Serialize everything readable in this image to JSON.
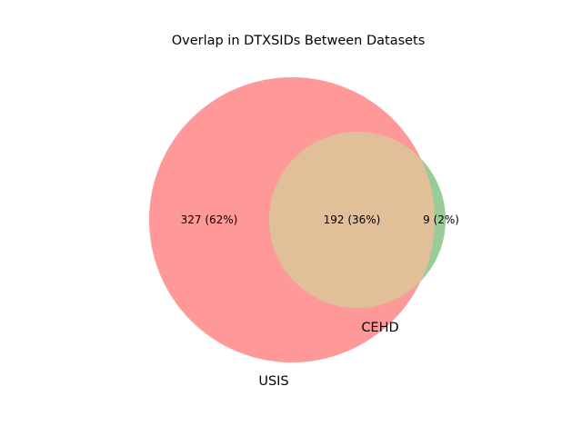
{
  "title": "Overlap in DTXSIDs Between Datasets",
  "sets": [
    {
      "name": "USIS",
      "color": "#ff9999"
    },
    {
      "name": "CEHD",
      "color": "#99cc99"
    }
  ],
  "regions": {
    "usis_only": {
      "label": "327 (62%)",
      "color": "#ff9999"
    },
    "intersection": {
      "label": "192 (36%)",
      "color": "#e0bf99"
    },
    "cehd_only": {
      "label": "9 (2%)",
      "color": "#99cc99"
    }
  }
}
